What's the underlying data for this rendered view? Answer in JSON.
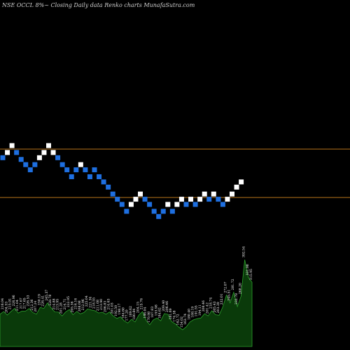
{
  "title": "NSE OCCL  8%~  Closing Daily data  Renko  charts MunafaSutra.com",
  "colors": {
    "background": "#000000",
    "up_brick": "#ffffff",
    "down_brick": "#1e6fe0",
    "reference_line": "#b8741a",
    "volume_fill": "#0a3a0a",
    "volume_outline": "#2ca02c",
    "label_text": "#ffffff"
  },
  "chart_data": {
    "type": "renko",
    "reference_lines": [
      292,
      264
    ],
    "bricks": [
      {
        "dir": "down",
        "price": 287
      },
      {
        "dir": "up",
        "price": 290
      },
      {
        "dir": "up",
        "price": 294
      },
      {
        "dir": "down",
        "price": 290
      },
      {
        "dir": "down",
        "price": 286
      },
      {
        "dir": "down",
        "price": 283
      },
      {
        "dir": "down",
        "price": 280
      },
      {
        "dir": "down",
        "price": 283
      },
      {
        "dir": "up",
        "price": 287
      },
      {
        "dir": "up",
        "price": 290
      },
      {
        "dir": "up",
        "price": 294
      },
      {
        "dir": "up",
        "price": 290
      },
      {
        "dir": "down",
        "price": 287
      },
      {
        "dir": "down",
        "price": 283
      },
      {
        "dir": "down",
        "price": 280
      },
      {
        "dir": "down",
        "price": 276
      },
      {
        "dir": "down",
        "price": 280
      },
      {
        "dir": "up",
        "price": 283
      },
      {
        "dir": "down",
        "price": 280
      },
      {
        "dir": "down",
        "price": 276
      },
      {
        "dir": "down",
        "price": 280
      },
      {
        "dir": "down",
        "price": 276
      },
      {
        "dir": "down",
        "price": 273
      },
      {
        "dir": "down",
        "price": 270
      },
      {
        "dir": "down",
        "price": 266
      },
      {
        "dir": "down",
        "price": 263
      },
      {
        "dir": "down",
        "price": 260
      },
      {
        "dir": "down",
        "price": 256
      },
      {
        "dir": "up",
        "price": 260
      },
      {
        "dir": "up",
        "price": 263
      },
      {
        "dir": "up",
        "price": 266
      },
      {
        "dir": "down",
        "price": 263
      },
      {
        "dir": "down",
        "price": 260
      },
      {
        "dir": "down",
        "price": 256
      },
      {
        "dir": "down",
        "price": 253
      },
      {
        "dir": "down",
        "price": 256
      },
      {
        "dir": "up",
        "price": 260
      },
      {
        "dir": "down",
        "price": 256
      },
      {
        "dir": "up",
        "price": 260
      },
      {
        "dir": "up",
        "price": 263
      },
      {
        "dir": "down",
        "price": 260
      },
      {
        "dir": "up",
        "price": 263
      },
      {
        "dir": "down",
        "price": 260
      },
      {
        "dir": "up",
        "price": 263
      },
      {
        "dir": "up",
        "price": 266
      },
      {
        "dir": "down",
        "price": 263
      },
      {
        "dir": "up",
        "price": 266
      },
      {
        "dir": "down",
        "price": 263
      },
      {
        "dir": "down",
        "price": 260
      },
      {
        "dir": "up",
        "price": 263
      },
      {
        "dir": "up",
        "price": 266
      },
      {
        "dir": "up",
        "price": 270
      },
      {
        "dir": "up",
        "price": 273
      }
    ],
    "volume_labels": [
      "206.98",
      "216.04",
      "204.53",
      "215.91",
      "226.96",
      "211.04",
      "217.67",
      "217.65",
      "226.53",
      "212.36",
      "207.24",
      "230.19",
      "226.41",
      "245.37",
      "228.78",
      "214.88",
      "213.95",
      "201.28",
      "214.71",
      "222.95",
      "205.36",
      "216.16",
      "208.08",
      "212.96",
      "225.04",
      "221.34",
      "218.55",
      "211.08",
      "213.90",
      "206.83",
      "214.63",
      "201.03",
      "192.50",
      "198.17",
      "184.60",
      "177.20",
      "189.62",
      "180.84",
      "204.15",
      "215.76",
      "186.04",
      "170.98",
      "187.83",
      "193.98",
      "184.62",
      "209.40",
      "206.46",
      "181.69",
      "174.38",
      "162.72",
      "154.02",
      "163.74",
      "180.40",
      "188.19",
      "191.55",
      "194.11",
      "208.46",
      "201.42",
      "218.74",
      "205.43",
      "203.39",
      "232.01",
      "272.07",
      "245.51",
      "281.72",
      "232.78",
      "268.20",
      "392.54",
      "331.98",
      "315.95"
    ]
  }
}
